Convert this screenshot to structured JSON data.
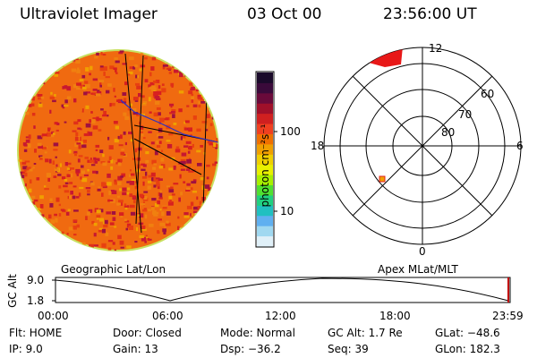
{
  "header": {
    "instrument": "Ultraviolet Imager",
    "date": "03 Oct 00",
    "time": "23:56:00 UT"
  },
  "colorbar": {
    "unit_label": "photon cm⁻²s⁻¹",
    "ticks": [
      "100",
      "10"
    ],
    "colors": [
      "#1a0a2a",
      "#3a0a3a",
      "#6a0a3a",
      "#a0102a",
      "#d02020",
      "#f04020",
      "#f07000",
      "#f0a000",
      "#f0d000",
      "#e8f000",
      "#a8f000",
      "#50e030",
      "#20d080",
      "#20c0c0",
      "#60b0f0",
      "#a0d8f0",
      "#e0f0f8"
    ]
  },
  "polar": {
    "label_top": "12",
    "label_bottom": "0",
    "label_left": "18",
    "label_right": "6",
    "rings": [
      "60",
      "70",
      "80"
    ]
  },
  "map_labels": {
    "left": "Geographic Lat/Lon",
    "right": "Apex MLat/MLT"
  },
  "altitude_plot": {
    "ylabel": "GC Alt",
    "yticks": [
      "9.0",
      "1.8"
    ],
    "xticks": [
      "00:00",
      "06:00",
      "12:00",
      "18:00",
      "23:59"
    ]
  },
  "status": {
    "flt": "Flt: HOME",
    "ip": "IP:  9.0",
    "door": "Door: Closed",
    "gain": "Gain: 13",
    "mode": "Mode: Normal",
    "dsp": "Dsp:  −36.2",
    "gc_alt": "GC Alt: 1.7 Re",
    "seq": "Seq: 39",
    "glat": "GLat: −48.6",
    "glon": "GLon: 182.3"
  }
}
